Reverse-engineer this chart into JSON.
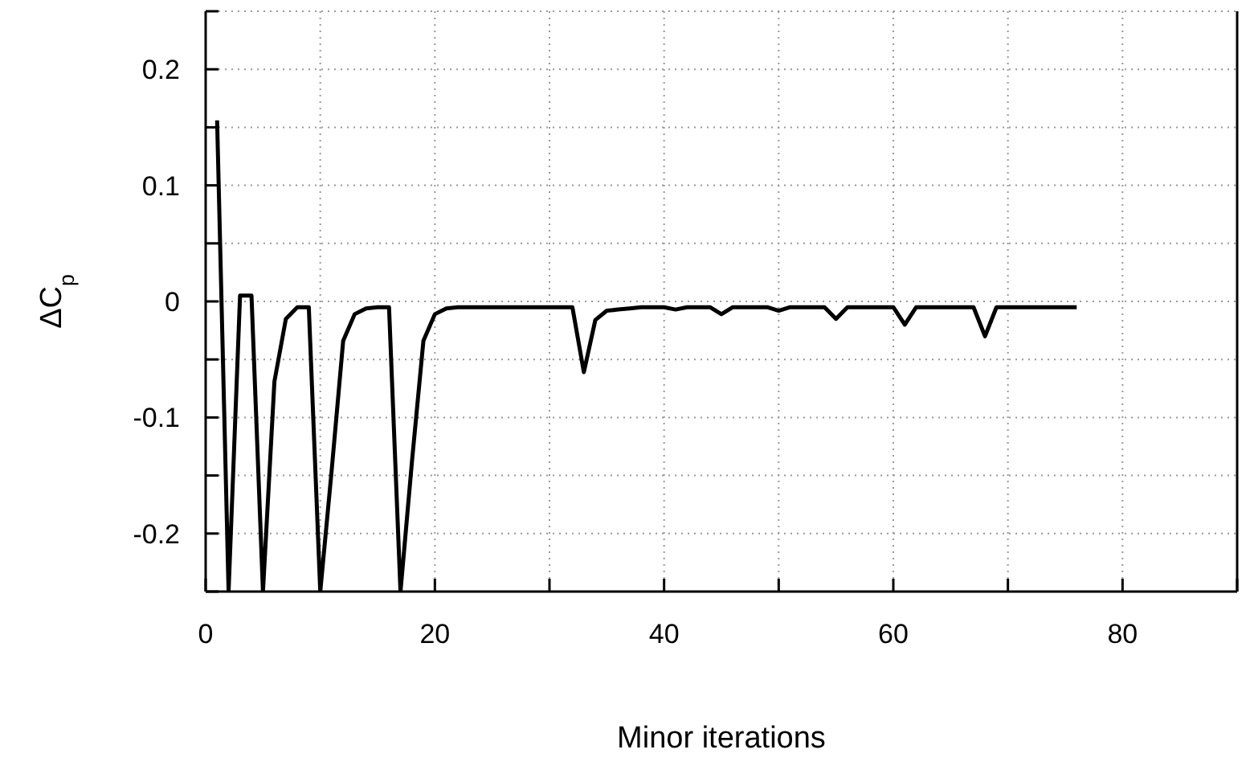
{
  "chart_data": {
    "type": "line",
    "xlabel": "Minor iterations",
    "ylabel": "ΔC$_{p}$",
    "x": [
      1,
      2,
      3,
      4,
      5,
      6,
      7,
      8,
      9,
      10,
      11,
      12,
      13,
      14,
      15,
      16,
      17,
      18,
      19,
      20,
      21,
      22,
      23,
      24,
      25,
      26,
      27,
      28,
      29,
      30,
      31,
      32,
      33,
      34,
      35,
      36,
      37,
      38,
      39,
      40,
      41,
      42,
      43,
      44,
      45,
      46,
      47,
      48,
      49,
      50,
      51,
      52,
      53,
      54,
      55,
      56,
      57,
      58,
      59,
      60,
      61,
      62,
      63,
      64,
      65,
      66,
      67,
      68,
      69,
      70,
      71,
      72,
      73,
      74,
      75,
      76
    ],
    "series": [
      {
        "color": "#000000",
        "values": [
          0.156,
          -0.25,
          0.005,
          0.005,
          -0.25,
          -0.069,
          -0.015,
          -0.005,
          -0.005,
          -0.25,
          -0.145,
          -0.034,
          -0.011,
          -0.006,
          -0.005,
          -0.005,
          -0.25,
          -0.138,
          -0.034,
          -0.011,
          -0.006,
          -0.005,
          -0.005,
          -0.005,
          -0.005,
          -0.005,
          -0.005,
          -0.005,
          -0.005,
          -0.005,
          -0.005,
          -0.005,
          -0.061,
          -0.016,
          -0.008,
          -0.007,
          -0.006,
          -0.005,
          -0.005,
          -0.005,
          -0.007,
          -0.005,
          -0.005,
          -0.005,
          -0.011,
          -0.005,
          -0.005,
          -0.005,
          -0.005,
          -0.008,
          -0.005,
          -0.005,
          -0.005,
          -0.005,
          -0.015,
          -0.005,
          -0.005,
          -0.005,
          -0.005,
          -0.005,
          -0.02,
          -0.005,
          -0.005,
          -0.005,
          -0.005,
          -0.005,
          -0.005,
          -0.03,
          -0.005,
          -0.005,
          -0.005,
          -0.005,
          -0.005,
          -0.005,
          -0.005,
          -0.005
        ]
      }
    ],
    "xlim": [
      0,
      90
    ],
    "xticks": [
      0,
      {
        "value": 10,
        "label": null
      },
      20,
      {
        "value": 30,
        "label": null
      },
      40,
      {
        "value": 50,
        "label": null
      },
      60,
      {
        "value": 70,
        "label": null
      },
      80,
      {
        "value": 90,
        "label": null
      }
    ],
    "ylim": [
      -0.25,
      0.25
    ],
    "yticks": [
      {
        "value": -0.25,
        "label": null
      },
      -0.2,
      {
        "value": -0.15,
        "label": null
      },
      -0.1,
      {
        "value": -0.05,
        "label": null
      },
      0,
      {
        "value": 0.05,
        "label": null
      },
      0.1,
      {
        "value": 0.15,
        "label": null
      },
      0.2,
      {
        "value": 0.25,
        "label": null
      }
    ],
    "grid": true,
    "marker": "none",
    "line_style": "solid"
  }
}
